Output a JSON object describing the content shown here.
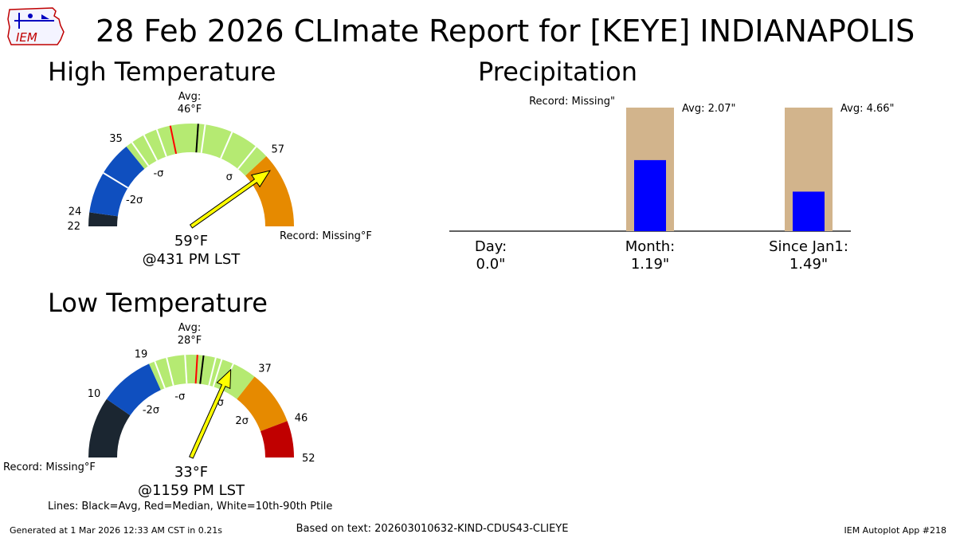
{
  "page_title": "28 Feb 2026 CLImate Report for [KEYE] INDIANAPOLIS",
  "logo_text": "IEM",
  "legend_note": "Lines: Black=Avg, Red=Median, White=10th-90th Ptile",
  "footer": {
    "generated": "Generated at 1 Mar 2026 12:33 AM CST in 0.21s",
    "source": "Based on text: 202603010632-KIND-CDUS43-CLIEYE",
    "app": "IEM Autoplot App #218"
  },
  "colors": {
    "dark": "#1b2631",
    "blue": "#0f4fbf",
    "green": "#b5ea72",
    "orange": "#e68a00",
    "red": "#c00000",
    "avg_bar": "#d2b48c",
    "obs_bar": "#0000ff",
    "needle": "#ffff00"
  },
  "chart_data": [
    {
      "type": "gauge",
      "title": "High Temperature",
      "min": 22,
      "max": 52,
      "observed": 59,
      "observed_label": "59°F",
      "time_label": "@431 PM LST",
      "avg_label": "Avg:",
      "avg_value_label": "46°F",
      "record_label": "Record: Missing°F",
      "tick_labels": [
        {
          "value": 22,
          "text": "22"
        },
        {
          "value": 24,
          "text": "24"
        },
        {
          "value": 35,
          "text": "35"
        },
        {
          "value": 57,
          "text": "57"
        }
      ],
      "sigma_labels": [
        {
          "value": 28.5,
          "text": "-2σ"
        },
        {
          "value": 37,
          "text": "-σ"
        },
        {
          "value": 54.5,
          "text": "σ"
        }
      ],
      "segments": [
        {
          "from": 22,
          "to": 24,
          "color": "dark"
        },
        {
          "from": 24,
          "to": 35,
          "color": "blue"
        },
        {
          "from": 35,
          "to": 57,
          "color": "green"
        },
        {
          "from": 57,
          "to": 68,
          "color": "orange"
        }
      ],
      "arc_max": 68,
      "avg": 46,
      "median": 42,
      "percentile_lines": [
        30,
        36,
        38,
        40,
        47,
        51,
        55
      ]
    },
    {
      "type": "gauge",
      "title": "Low Temperature",
      "min": 0,
      "max": 52,
      "observed": 33,
      "observed_label": "33°F",
      "time_label": "@1159 PM LST",
      "avg_label": "Avg:",
      "avg_value_label": "28°F",
      "record_label": "Record: Missing°F",
      "tick_labels": [
        {
          "value": 10,
          "text": "10"
        },
        {
          "value": 19,
          "text": "19"
        },
        {
          "value": 37,
          "text": "37"
        },
        {
          "value": 46,
          "text": "46"
        },
        {
          "value": 52,
          "text": "52"
        }
      ],
      "sigma_labels": [
        {
          "value": 14.5,
          "text": "-2σ"
        },
        {
          "value": 23,
          "text": "-σ"
        },
        {
          "value": 34,
          "text": "σ"
        },
        {
          "value": 41.5,
          "text": "2σ"
        }
      ],
      "segments": [
        {
          "from": 0,
          "to": 10,
          "color": "dark"
        },
        {
          "from": 10,
          "to": 19,
          "color": "blue"
        },
        {
          "from": 19,
          "to": 37,
          "color": "green"
        },
        {
          "from": 37,
          "to": 46,
          "color": "orange"
        },
        {
          "from": 46,
          "to": 52,
          "color": "red"
        }
      ],
      "arc_min": 0,
      "arc_max": 52,
      "avg": 28,
      "median": 27,
      "percentile_lines": [
        20,
        22,
        25,
        30,
        31,
        33
      ]
    },
    {
      "type": "bar",
      "title": "Precipitation",
      "categories": [
        "Day:",
        "Month:",
        "Since Jan1:"
      ],
      "value_labels": [
        "0.0\"",
        "1.19\"",
        "1.49\""
      ],
      "observed": [
        0.0,
        1.19,
        1.49
      ],
      "averages": [
        null,
        2.07,
        4.66
      ],
      "avg_labels": [
        "Record: Missing\"",
        "Avg: 2.07\"",
        "Avg: 4.66\""
      ]
    }
  ]
}
